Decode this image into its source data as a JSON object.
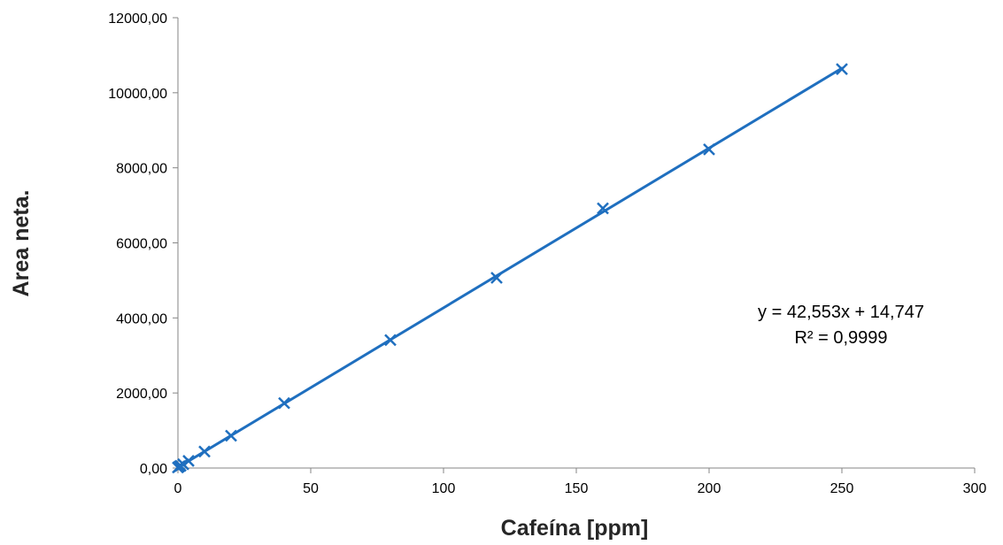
{
  "chart_data": {
    "type": "scatter",
    "title": "",
    "xlabel": "Cafeína [ppm]",
    "ylabel": "Area neta.",
    "xlim": [
      0,
      300
    ],
    "ylim": [
      0,
      12000
    ],
    "x_ticks": [
      0,
      50,
      100,
      150,
      200,
      250,
      300
    ],
    "y_ticks": [
      0,
      2000,
      4000,
      6000,
      8000,
      10000,
      12000
    ],
    "x_tick_labels": [
      "0",
      "50",
      "100",
      "150",
      "200",
      "250",
      "300"
    ],
    "y_tick_labels": [
      "0,00",
      "2000,00",
      "4000,00",
      "6000,00",
      "8000,00",
      "10000,00",
      "12000,00"
    ],
    "grid": false,
    "legend": "none",
    "series": [
      {
        "marker": "x",
        "color": "#1F6FBF",
        "x": [
          0,
          0.5,
          1,
          2,
          4,
          10,
          20,
          40,
          80,
          120,
          160,
          200,
          250
        ],
        "y": [
          15,
          40,
          58,
          100,
          190,
          440,
          860,
          1730,
          3410,
          5070,
          6920,
          8490,
          10630
        ]
      }
    ],
    "trendline": {
      "type": "linear",
      "slope": 42.553,
      "intercept": 14.747,
      "x_range": [
        0,
        250
      ],
      "color": "#1F6FBF"
    },
    "annotation": {
      "equation": "y = 42,553x + 14,747",
      "r2": "R² = 0,9999"
    }
  }
}
